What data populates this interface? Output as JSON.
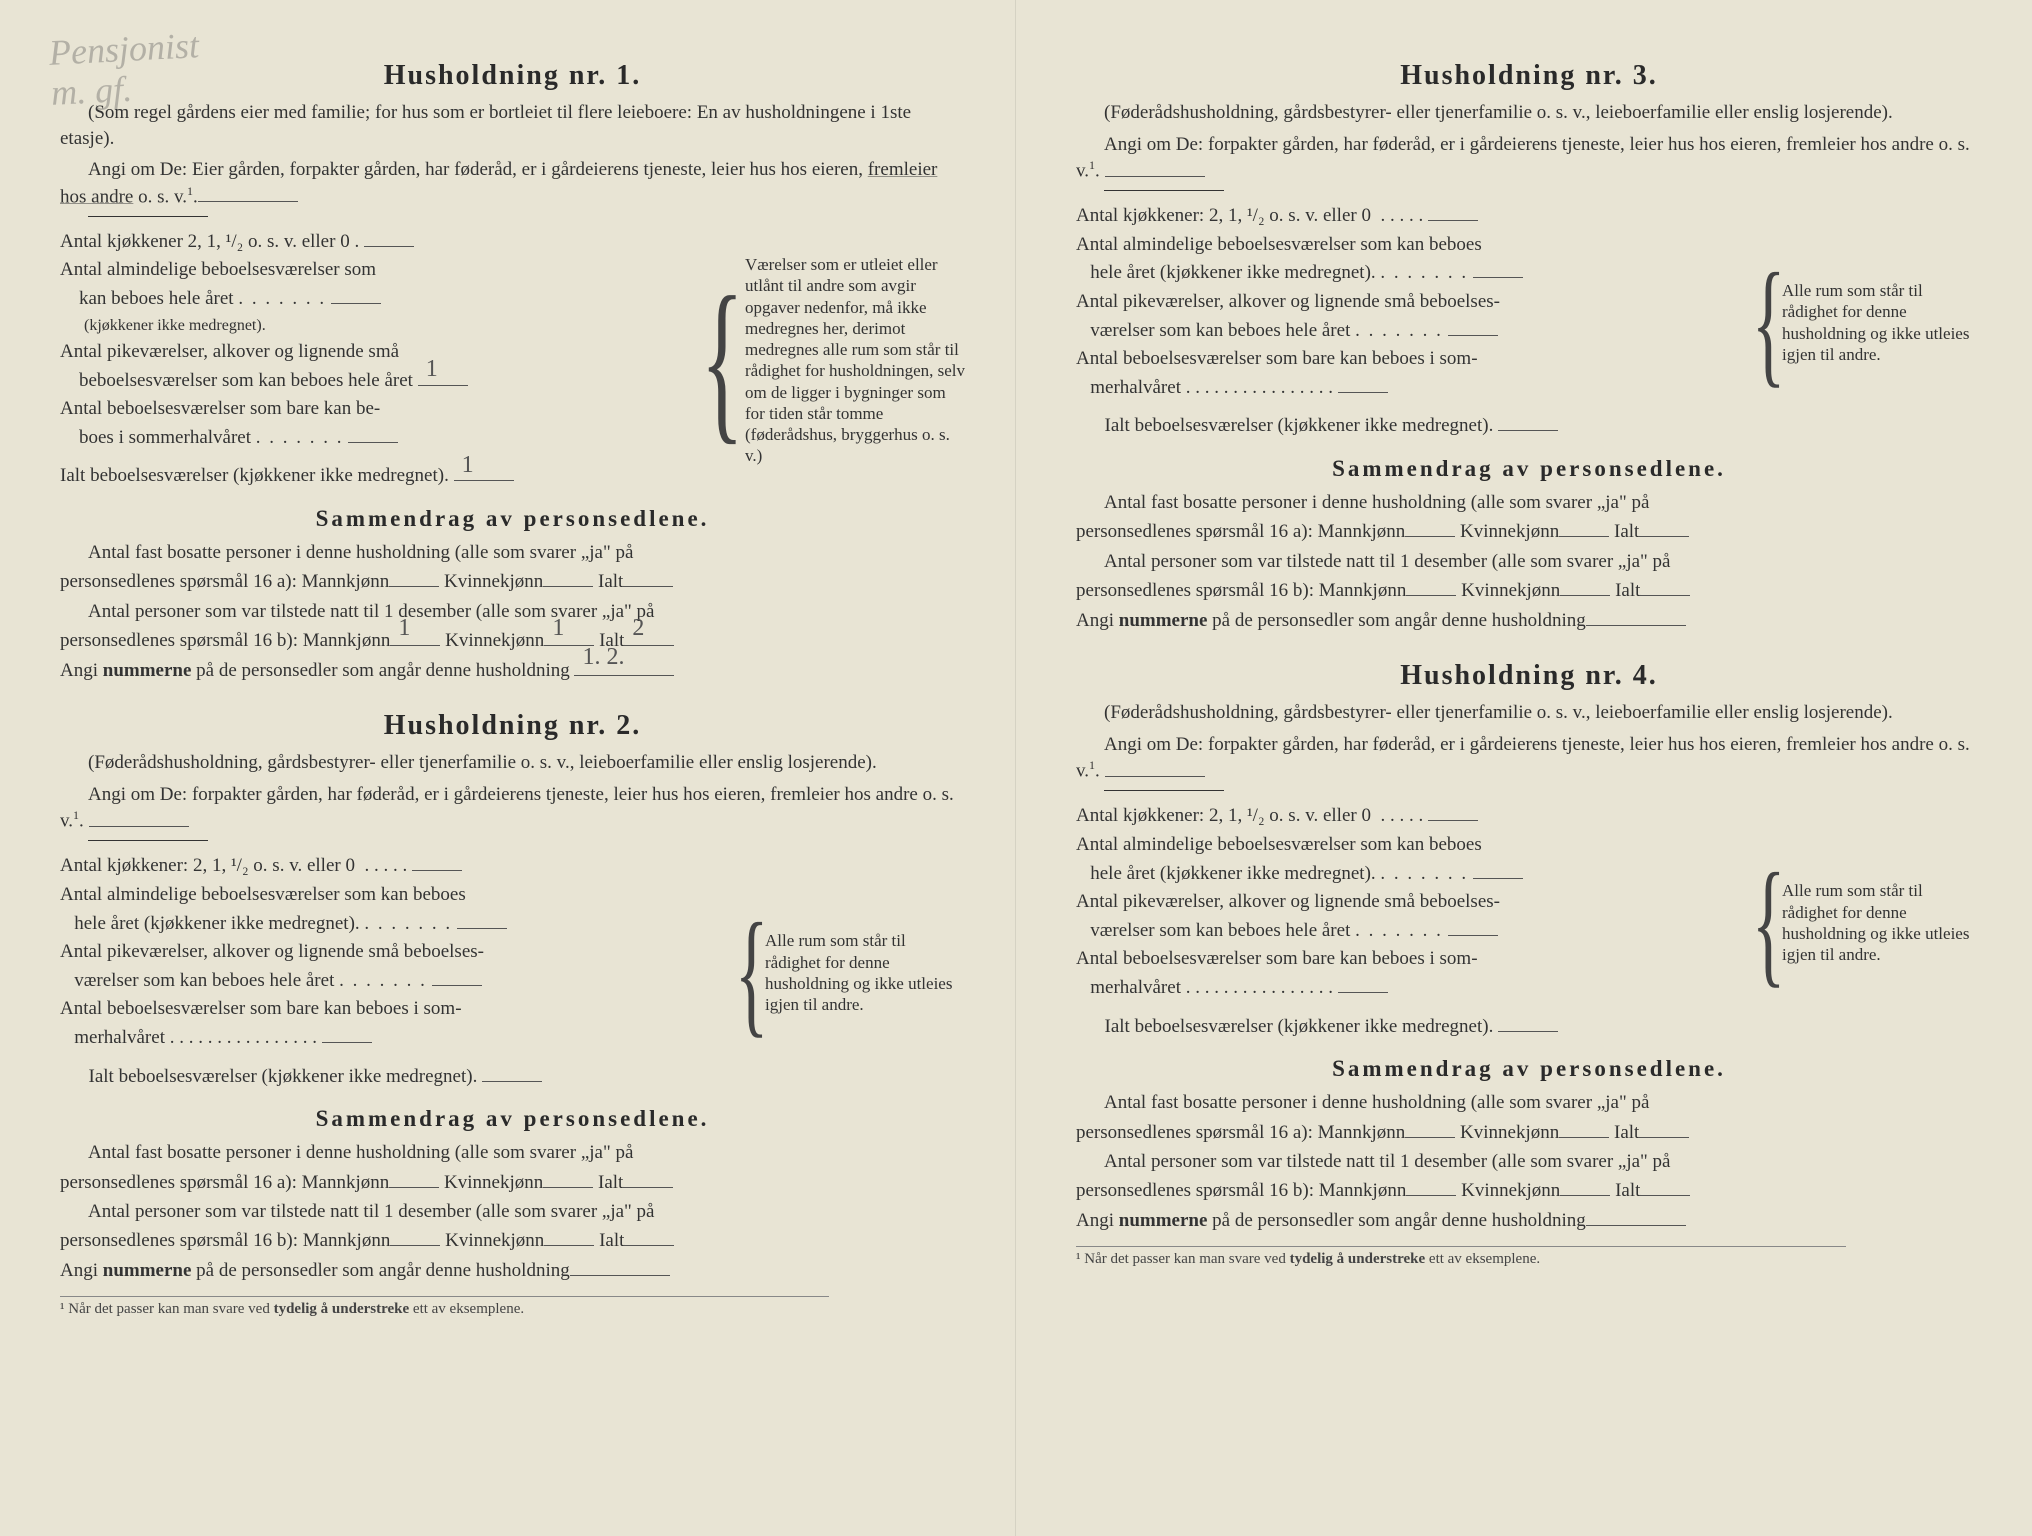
{
  "handwriting": {
    "line1": "Pensjonist",
    "line2": "m. gf."
  },
  "h1": {
    "title": "Husholdning nr. 1.",
    "intro_paren": "(Som regel gårdens eier med familie; for hus som er bortleiet til flere leieboere: En av husholdningene i 1ste etasje).",
    "angi": "Angi om De: Eier gården, forpakter gården, har føderåd, er i gårdeierens tjeneste, leier hus hos eieren, ",
    "angi_u": "fremleier hos andre",
    "angi_end": " o. s. v.",
    "kjok": "Antal kjøkkener 2, 1, ¹/₂ o. s. v. eller 0   .",
    "alm1": "Antal almindelige beboelsesværelser som",
    "alm2": "kan beboes hele året",
    "alm_sub": "(kjøkkener ikke medregnet).",
    "pike1": "Antal pikeværelser, alkover og lignende små",
    "pike2": "beboelsesværelser som kan beboes hele året",
    "som1": "Antal beboelsesværelser som bare kan be-",
    "som2": "boes i sommerhalvåret",
    "ialt": "Ialt beboelsesværelser (kjøkkener ikke medregnet).",
    "side": "Værelser som er utleiet eller utlånt til andre som avgir opgaver nedenfor, må ikke medregnes her, derimot medregnes alle rum som står til rådighet for husholdningen, selv om de ligger i bygninger som for tiden står tomme (føderådshus, bryggerhus o. s. v.)",
    "hw_pike": "1",
    "hw_ialt": "1"
  },
  "summary": {
    "title": "Sammendrag av personsedlene.",
    "fast1": "Antal fast bosatte personer i denne husholdning (alle som svarer „ja\" på",
    "fast2": "personsedlenes spørsmål 16 a): Mannkjønn",
    "kvinn": "Kvinnekjønn",
    "ialt": "Ialt",
    "til1": "Antal personer som var tilstede natt til 1 desember (alle som svarer „ja\" på",
    "til2": "personsedlenes spørsmål 16 b): Mannkjønn",
    "angi_num": "Angi ",
    "angi_num_b": "nummerne",
    "angi_num_end": " på de personsedler som angår denne husholdning"
  },
  "h1_fill": {
    "mann_b": "1",
    "kvinn_b": "1",
    "ialt_b": "2",
    "numbers": "1. 2."
  },
  "h234": {
    "paren": "(Føderådshusholdning, gårdsbestyrer- eller tjenerfamilie o. s. v., leieboerfamilie eller enslig losjerende).",
    "angi": "Angi om De:  forpakter gården, har føderåd, er i gårdeierens tjeneste, leier hus hos eieren, fremleier hos andre o. s. v.",
    "kjok": "Antal kjøkkener: 2, 1, ¹/₂ o. s. v. eller 0",
    "alm1": "Antal almindelige beboelsesværelser som kan beboes",
    "alm2": "hele året (kjøkkener ikke medregnet).",
    "pike1": "Antal pikeværelser, alkover og lignende små beboelses-",
    "pike2": "værelser som kan beboes hele året",
    "som1": "Antal beboelsesværelser som bare kan beboes i som-",
    "som2": "merhalvåret . . . . . . . . . . . . . . . .",
    "ialt": "Ialt beboelsesværelser  (kjøkkener ikke medregnet).",
    "side": "Alle rum som står til rådighet for denne husholdning og ikke utleies igjen til andre."
  },
  "titles": {
    "h2": "Husholdning nr. 2.",
    "h3": "Husholdning nr. 3.",
    "h4": "Husholdning nr. 4."
  },
  "footnote": "¹  Når det passer kan man svare ved ",
  "footnote_b": "tydelig å understreke",
  "footnote_end": " ett av eksemplene.",
  "sup1": "1"
}
